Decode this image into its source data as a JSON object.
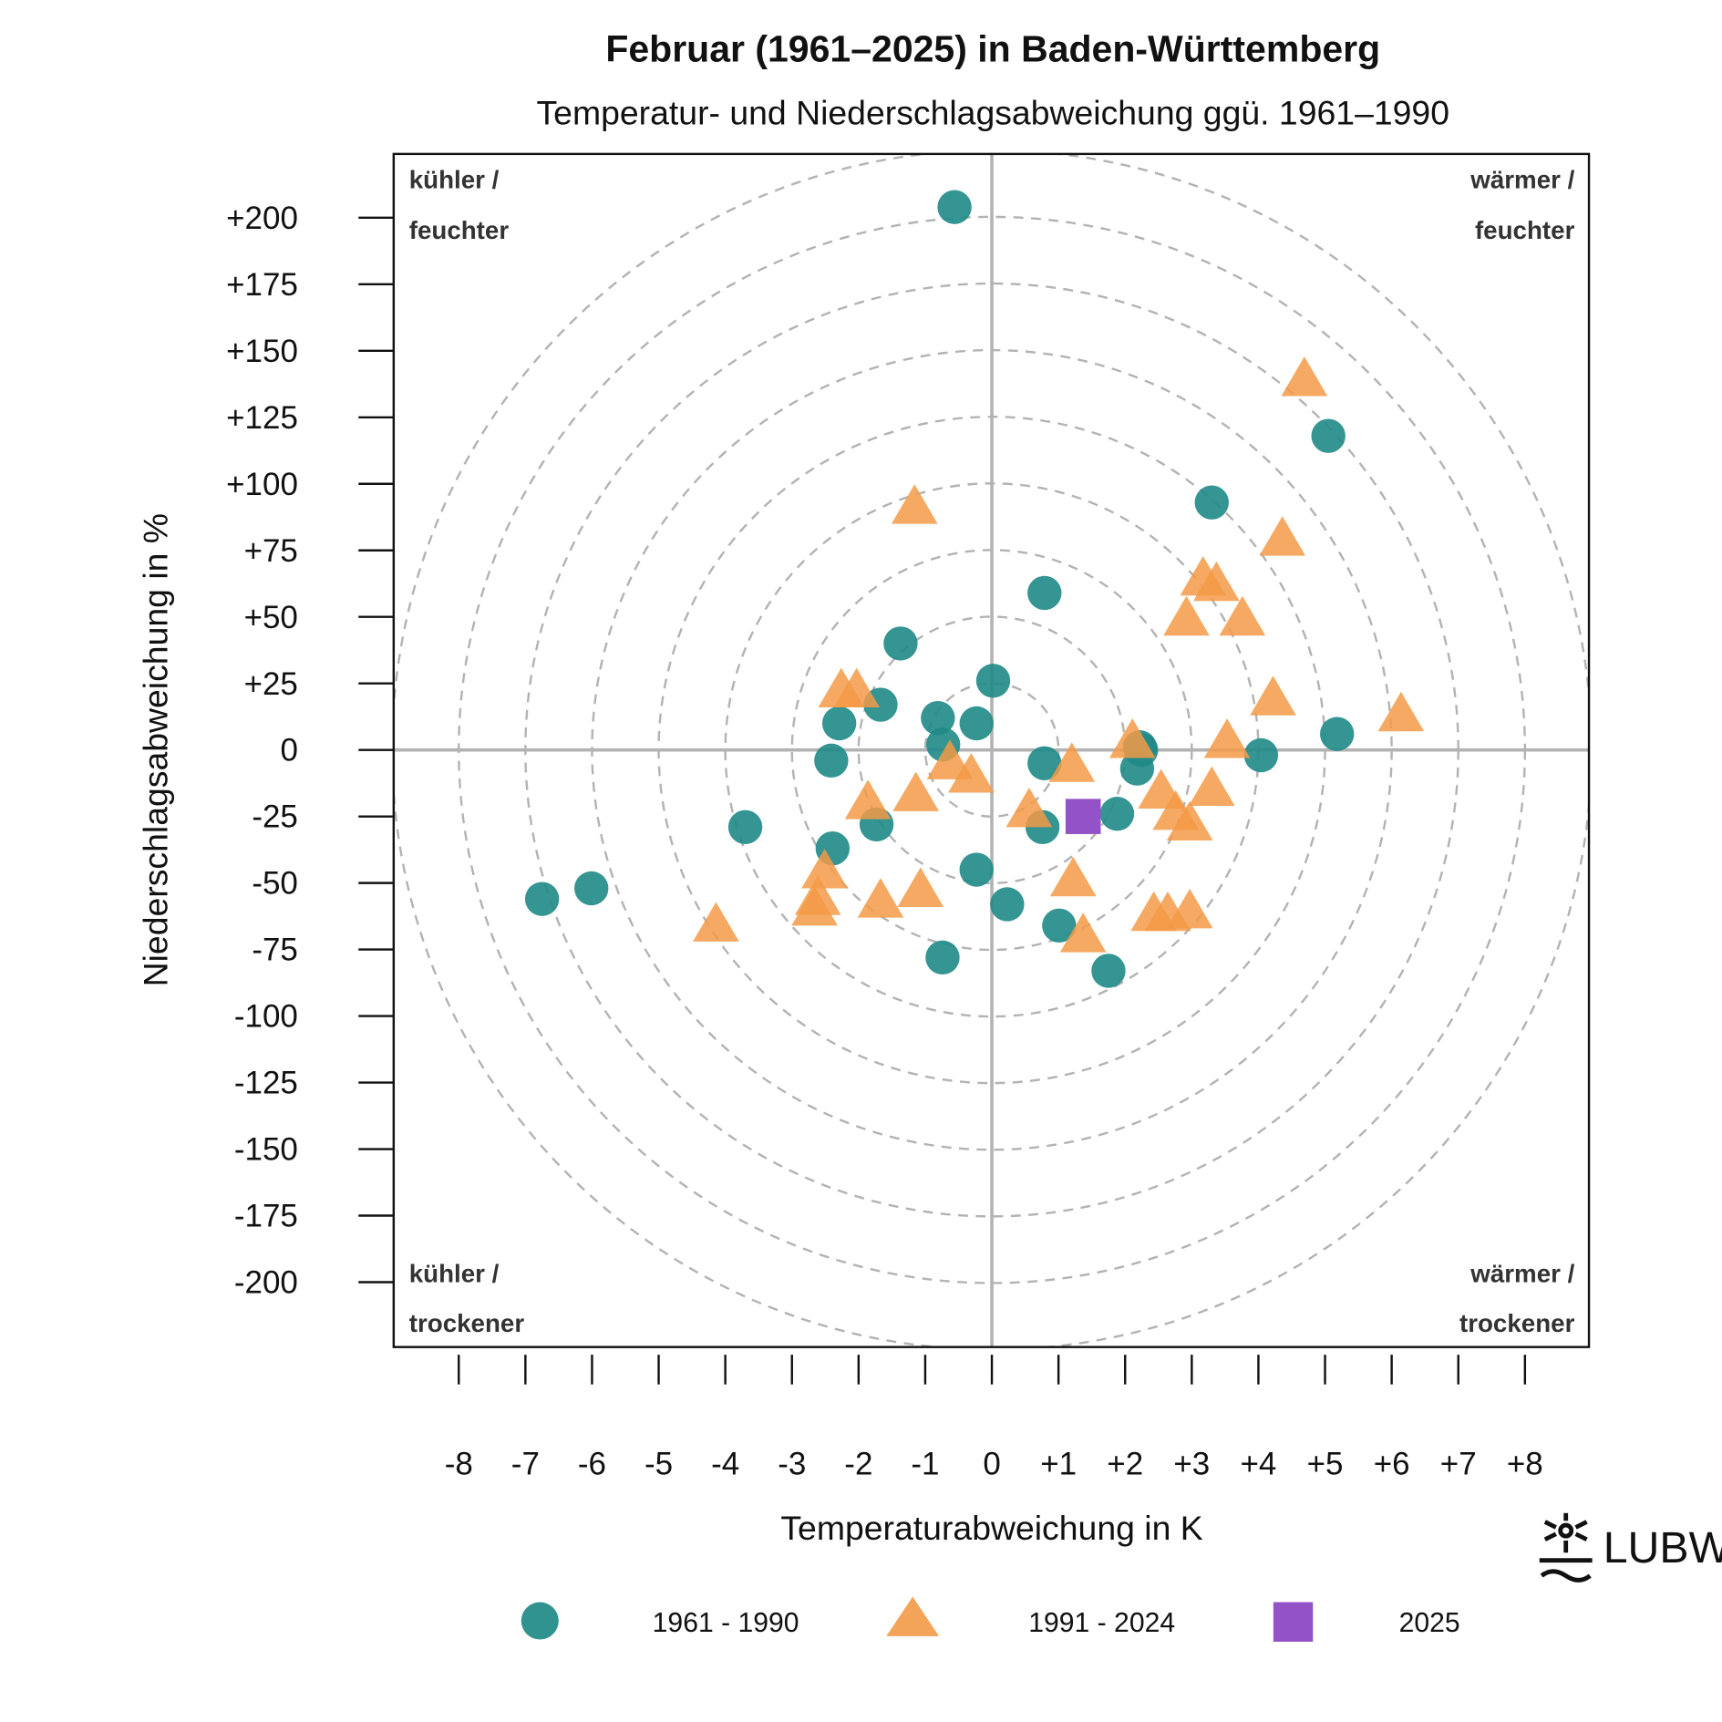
{
  "chart_data": {
    "type": "scatter",
    "title": "Februar (1961–2025) in Baden-Württemberg",
    "subtitle": "Temperatur- und Niederschlagsabweichung ggü. 1961–1990",
    "xlabel": "Temperaturabweichung in K",
    "ylabel": "Niederschlagsabweichung in %",
    "xlim": [
      -8.1,
      8.9
    ],
    "ylim": [
      -224,
      224
    ],
    "x_ticks": [
      -8,
      -7,
      -6,
      -5,
      -4,
      -3,
      -2,
      -1,
      0,
      1,
      2,
      3,
      4,
      5,
      6,
      7,
      8
    ],
    "x_tick_labels": [
      "-8",
      "-7",
      "-6",
      "-5",
      "-4",
      "-3",
      "-2",
      "-1",
      "0",
      "+1",
      "+2",
      "+3",
      "+4",
      "+5",
      "+6",
      "+7",
      "+8"
    ],
    "y_ticks": [
      200,
      175,
      150,
      125,
      100,
      75,
      50,
      25,
      0,
      -25,
      -50,
      -75,
      -100,
      -125,
      -150,
      -175,
      -200
    ],
    "y_tick_labels": [
      "+200",
      "+175",
      "+150",
      "+125",
      "+100",
      "+75",
      "+50",
      "+25",
      "0",
      "-25",
      "-50",
      "-75",
      "-100",
      "-125",
      "-150",
      "-175",
      "-200"
    ],
    "grid": "concentric dashed circles",
    "quadrant_labels": {
      "top_left": [
        "kühler /",
        "feuchter"
      ],
      "top_right": [
        "wärmer /",
        "feuchter"
      ],
      "bottom_left": [
        "kühler /",
        "trockener"
      ],
      "bottom_right": [
        "wärmer /",
        "trockener"
      ]
    },
    "legend_position": "bottom",
    "series": [
      {
        "name": "1961 - 1990",
        "marker": "circle",
        "color": "#1f8a87",
        "points": [
          [
            -0.56,
            204
          ],
          [
            5.05,
            118
          ],
          [
            3.3,
            93
          ],
          [
            0.79,
            59
          ],
          [
            -1.37,
            40
          ],
          [
            0.02,
            26
          ],
          [
            -1.67,
            17
          ],
          [
            -0.81,
            12
          ],
          [
            -2.29,
            10
          ],
          [
            -0.23,
            10
          ],
          [
            -0.73,
            2
          ],
          [
            2.24,
            0
          ],
          [
            2.22,
            1
          ],
          [
            5.18,
            6
          ],
          [
            4.04,
            -2
          ],
          [
            -2.41,
            -4
          ],
          [
            0.79,
            -5
          ],
          [
            2.18,
            -7
          ],
          [
            0.76,
            -29
          ],
          [
            -1.73,
            -28
          ],
          [
            1.88,
            -24
          ],
          [
            -3.7,
            -29
          ],
          [
            -2.39,
            -37
          ],
          [
            -0.23,
            -45
          ],
          [
            -6.01,
            -52
          ],
          [
            -6.75,
            -56
          ],
          [
            0.23,
            -58
          ],
          [
            1.01,
            -66
          ],
          [
            -0.74,
            -78
          ],
          [
            1.75,
            -83
          ]
        ]
      },
      {
        "name": "1991 - 2024",
        "marker": "triangle",
        "color": "#f39a47",
        "points": [
          [
            4.69,
            140
          ],
          [
            -1.16,
            92
          ],
          [
            4.36,
            80
          ],
          [
            3.17,
            65
          ],
          [
            3.37,
            63
          ],
          [
            2.92,
            50
          ],
          [
            3.76,
            50
          ],
          [
            4.22,
            20
          ],
          [
            -2.26,
            23
          ],
          [
            -2.03,
            23
          ],
          [
            6.14,
            14
          ],
          [
            2.11,
            4
          ],
          [
            3.53,
            4
          ],
          [
            -0.63,
            -4
          ],
          [
            -0.31,
            -9
          ],
          [
            1.2,
            -5
          ],
          [
            -1.14,
            -16
          ],
          [
            -1.86,
            -19
          ],
          [
            2.54,
            -15
          ],
          [
            3.3,
            -14
          ],
          [
            0.56,
            -22
          ],
          [
            2.76,
            -23
          ],
          [
            2.97,
            -27
          ],
          [
            1.22,
            -48
          ],
          [
            -2.51,
            -45
          ],
          [
            -2.61,
            -55
          ],
          [
            -2.66,
            -59
          ],
          [
            -1.67,
            -56
          ],
          [
            -1.07,
            -52
          ],
          [
            -4.14,
            -65
          ],
          [
            1.37,
            -69
          ],
          [
            2.43,
            -61
          ],
          [
            2.64,
            -61
          ],
          [
            2.97,
            -60
          ]
        ]
      },
      {
        "name": "2025",
        "marker": "square",
        "color": "#9452c8",
        "points": [
          [
            1.37,
            -25
          ]
        ]
      }
    ]
  },
  "logo_text": "LUBW"
}
